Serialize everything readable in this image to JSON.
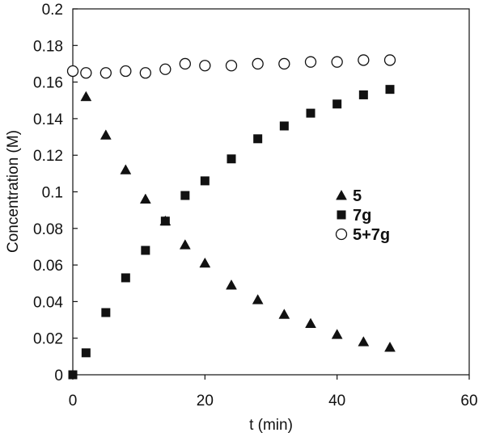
{
  "chart_data": {
    "type": "scatter",
    "title": "",
    "xlabel": "t (min)",
    "ylabel": "Concentration (M)",
    "xlim": [
      0,
      60
    ],
    "ylim": [
      0,
      0.2
    ],
    "xticks": [
      0,
      20,
      40,
      60
    ],
    "xtick_labels": [
      "0",
      "20",
      "40",
      "60"
    ],
    "yticks": [
      0,
      0.02,
      0.04,
      0.06,
      0.08,
      0.1,
      0.12,
      0.14,
      0.16,
      0.18,
      0.2
    ],
    "ytick_labels": [
      "0",
      "0.02",
      "0.04",
      "0.06",
      "0.08",
      "0.1",
      "0.12",
      "0.14",
      "0.16",
      "0.18",
      "0.2"
    ],
    "grid": false,
    "legend_position": "center-right",
    "series": [
      {
        "name": "5",
        "marker": "triangle-filled",
        "color": "#111111",
        "points": [
          [
            2,
            0.152
          ],
          [
            5,
            0.131
          ],
          [
            8,
            0.112
          ],
          [
            11,
            0.096
          ],
          [
            14,
            0.084
          ],
          [
            17,
            0.071
          ],
          [
            20,
            0.061
          ],
          [
            24,
            0.049
          ],
          [
            28,
            0.041
          ],
          [
            32,
            0.033
          ],
          [
            36,
            0.028
          ],
          [
            40,
            0.022
          ],
          [
            44,
            0.018
          ],
          [
            48,
            0.015
          ]
        ]
      },
      {
        "name": "7g",
        "marker": "square-filled",
        "color": "#111111",
        "points": [
          [
            0,
            0.0
          ],
          [
            2,
            0.012
          ],
          [
            5,
            0.034
          ],
          [
            8,
            0.053
          ],
          [
            11,
            0.068
          ],
          [
            14,
            0.084
          ],
          [
            17,
            0.098
          ],
          [
            20,
            0.106
          ],
          [
            24,
            0.118
          ],
          [
            28,
            0.129
          ],
          [
            32,
            0.136
          ],
          [
            36,
            0.143
          ],
          [
            40,
            0.148
          ],
          [
            44,
            0.153
          ],
          [
            48,
            0.156
          ]
        ]
      },
      {
        "name": "5+7g",
        "marker": "circle-open",
        "color": "#111111",
        "points": [
          [
            0,
            0.166
          ],
          [
            2,
            0.165
          ],
          [
            5,
            0.165
          ],
          [
            8,
            0.166
          ],
          [
            11,
            0.165
          ],
          [
            14,
            0.167
          ],
          [
            17,
            0.17
          ],
          [
            20,
            0.169
          ],
          [
            24,
            0.169
          ],
          [
            28,
            0.17
          ],
          [
            32,
            0.17
          ],
          [
            36,
            0.171
          ],
          [
            40,
            0.171
          ],
          [
            44,
            0.172
          ],
          [
            48,
            0.172
          ]
        ]
      }
    ]
  }
}
